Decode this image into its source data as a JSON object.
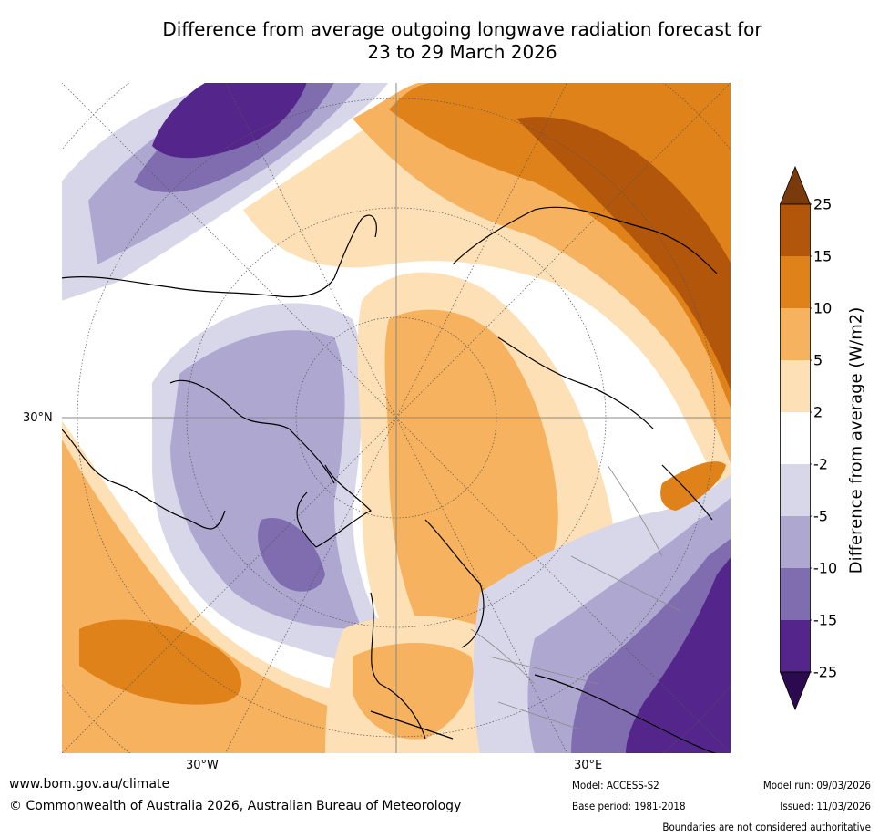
{
  "title_line1": "Difference from average outgoing longwave radiation forecast for",
  "title_line2": "23 to 29 March 2026",
  "map": {
    "lat_label": "30°N",
    "lon_labels": [
      "30°W",
      "30°E"
    ]
  },
  "colorbar": {
    "title": "Difference from average (W/m2)",
    "ticks": [
      "25",
      "15",
      "10",
      "5",
      "2",
      "-2",
      "-5",
      "-10",
      "-15",
      "-25"
    ],
    "colors": [
      "#7b3a0c",
      "#b1560b",
      "#e0821a",
      "#f6b25e",
      "#fde0b5",
      "#ffffff",
      "#d8d7ea",
      "#aea8d0",
      "#7f6db0",
      "#54268c",
      "#2c0a50"
    ]
  },
  "footer": {
    "website": "www.bom.gov.au/climate",
    "copyright": "© Commonwealth of Australia 2026, Australian Bureau of Meteorology",
    "model": "Model: ACCESS-S2",
    "base_period": "Base period: 1981-2018",
    "model_run": "Model run: 09/03/2026",
    "issued": "Issued: 11/03/2026",
    "disclaimer": "Boundaries are not considered authoritative"
  }
}
